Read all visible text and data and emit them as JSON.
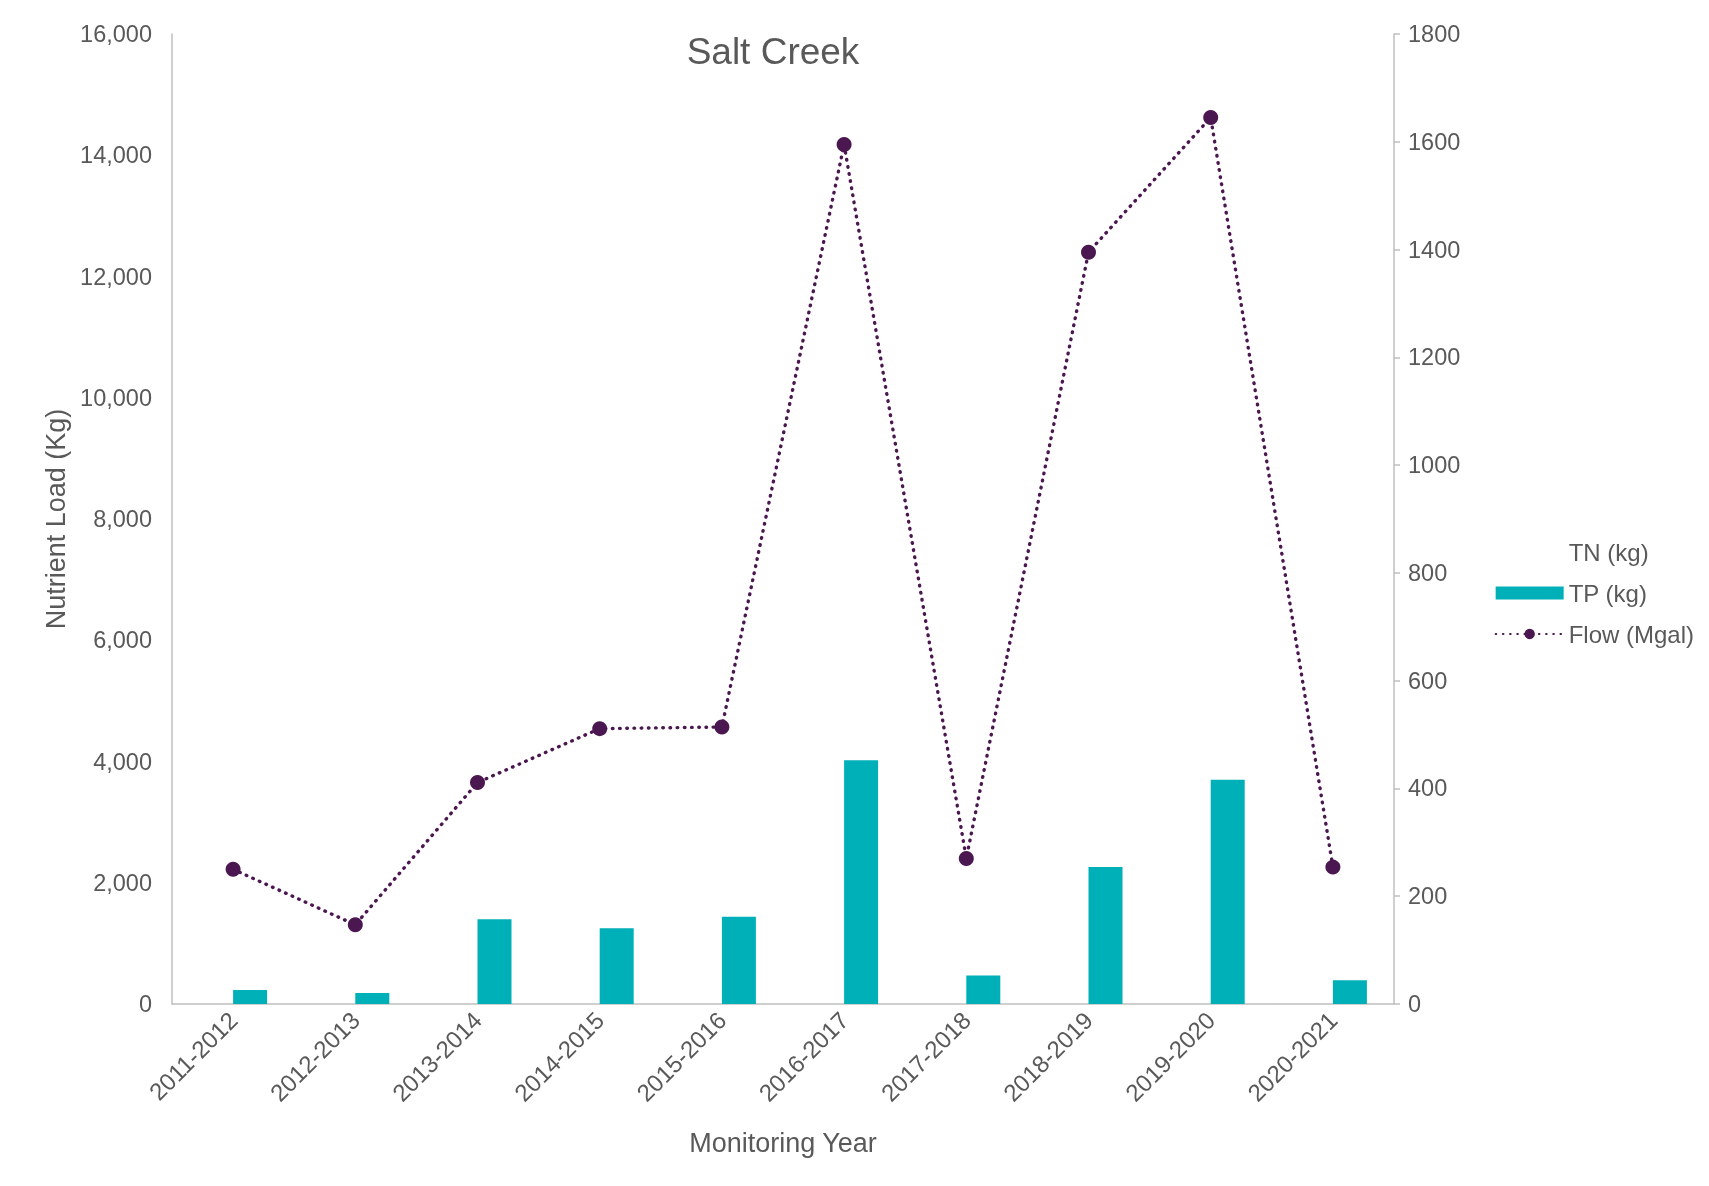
{
  "chart_data": {
    "type": "bar",
    "title": "Salt Creek",
    "xlabel": "Monitoring Year",
    "ylabel": "Nutrient Load (Kg)",
    "categories": [
      "2011-2012",
      "2012-2013",
      "2013-2014",
      "2014-2015",
      "2015-2016",
      "2016-2017",
      "2017-2018",
      "2018-2019",
      "2019-2020",
      "2020-2021"
    ],
    "series": [
      {
        "name": "TN (kg)",
        "values": [
          null,
          null,
          null,
          null,
          null,
          null,
          null,
          null,
          null,
          null
        ]
      },
      {
        "name": "TP (kg)",
        "color": "#00b0b9",
        "values": [
          230,
          180,
          1400,
          1250,
          1440,
          4020,
          470,
          2260,
          3700,
          390
        ]
      },
      {
        "name": "Flow (Mgal)",
        "type": "line",
        "axis": "y2",
        "color": "#4b1750",
        "marker": "circle",
        "line_style": "dotted",
        "values": [
          250,
          147,
          411,
          511,
          514,
          1595,
          270,
          1395,
          1645,
          254
        ]
      }
    ],
    "ylim": [
      0,
      16000
    ],
    "yticks": [
      0,
      {
        "value": 2000,
        "label": "2,000"
      },
      {
        "value": 4000,
        "label": "4,000"
      },
      {
        "value": 6000,
        "label": "6,000"
      },
      {
        "value": 8000,
        "label": "8,000"
      },
      {
        "value": 10000,
        "label": "10,000"
      },
      {
        "value": 12000,
        "label": "12,000"
      },
      {
        "value": 14000,
        "label": "14,000"
      },
      {
        "value": 16000,
        "label": "16,000"
      }
    ],
    "y2lim": [
      0,
      1800
    ],
    "y2ticks": [
      0,
      200,
      400,
      600,
      800,
      1000,
      1200,
      1400,
      1600,
      1800
    ],
    "grid": false,
    "legend": "right"
  }
}
